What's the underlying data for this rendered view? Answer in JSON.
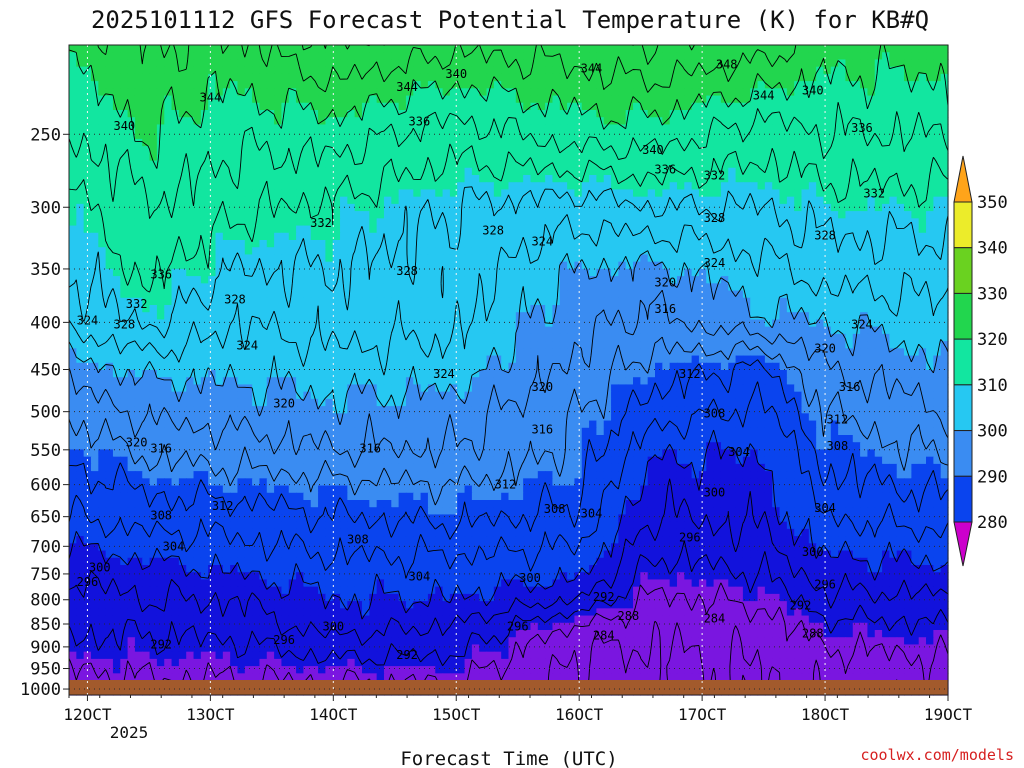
{
  "chart_data": {
    "type": "heatmap",
    "title": "2025101112 GFS Forecast Potential Temperature (K) for KB#Q",
    "xlabel": "Forecast Time (UTC)",
    "ylabel": "",
    "credit": "coolwx.com/models",
    "x_ticks": [
      "12OCT",
      "13OCT",
      "14OCT",
      "15OCT",
      "16OCT",
      "17OCT",
      "18OCT",
      "19OCT"
    ],
    "x_tick_values": [
      12,
      13,
      14,
      15,
      16,
      17,
      18,
      19
    ],
    "x_subtick": "2025",
    "xlim": [
      11.85,
      19.0
    ],
    "y_ticks": [
      "250",
      "300",
      "350",
      "400",
      "450",
      "500",
      "550",
      "600",
      "650",
      "700",
      "750",
      "800",
      "850",
      "900",
      "950",
      "1000"
    ],
    "y_tick_values": [
      250,
      300,
      350,
      400,
      450,
      500,
      550,
      600,
      650,
      700,
      750,
      800,
      850,
      900,
      950,
      1000
    ],
    "ylim": [
      200,
      1015
    ],
    "yscale": "log",
    "color_levels": [
      280,
      290,
      300,
      310,
      320,
      330,
      340,
      350
    ],
    "legend_labels": [
      "350",
      "340",
      "330",
      "320",
      "310",
      "300",
      "290",
      "280"
    ],
    "colors": [
      "#cc00cc",
      "#7a16e0",
      "#1212dc",
      "#0a44ee",
      "#3a8cf2",
      "#26c8f2",
      "#12e6a0",
      "#22d64e",
      "#6ad220",
      "#ecec2a",
      "#ffa41a"
    ],
    "ground_color": "#a25a2c",
    "contour_interval": 4,
    "profiles": [
      {
        "t": 11.85,
        "levels": [
          [
            200,
            342
          ],
          [
            250,
            336
          ],
          [
            300,
            330
          ],
          [
            350,
            328
          ],
          [
            400,
            325
          ],
          [
            450,
            318
          ],
          [
            500,
            313
          ],
          [
            550,
            309
          ],
          [
            600,
            306
          ],
          [
            650,
            304
          ],
          [
            700,
            300
          ],
          [
            750,
            297
          ],
          [
            800,
            294
          ],
          [
            850,
            293
          ],
          [
            900,
            291
          ],
          [
            950,
            288
          ],
          [
            1000,
            286
          ]
        ]
      },
      {
        "t": 12.5,
        "levels": [
          [
            200,
            344
          ],
          [
            250,
            340
          ],
          [
            300,
            336
          ],
          [
            350,
            333
          ],
          [
            400,
            329
          ],
          [
            450,
            321
          ],
          [
            500,
            317
          ],
          [
            550,
            313
          ],
          [
            600,
            309
          ],
          [
            650,
            306
          ],
          [
            700,
            302
          ],
          [
            750,
            298
          ],
          [
            800,
            296
          ],
          [
            850,
            293
          ],
          [
            900,
            291
          ],
          [
            950,
            289
          ],
          [
            1000,
            287
          ]
        ]
      },
      {
        "t": 13.2,
        "levels": [
          [
            200,
            343
          ],
          [
            250,
            337
          ],
          [
            300,
            333
          ],
          [
            350,
            328
          ],
          [
            400,
            324
          ],
          [
            450,
            321
          ],
          [
            500,
            318
          ],
          [
            550,
            314
          ],
          [
            600,
            310
          ],
          [
            650,
            306
          ],
          [
            700,
            303
          ],
          [
            750,
            300
          ],
          [
            800,
            296
          ],
          [
            850,
            294
          ],
          [
            900,
            291
          ],
          [
            950,
            289
          ],
          [
            1000,
            287
          ]
        ]
      },
      {
        "t": 14.0,
        "levels": [
          [
            200,
            348
          ],
          [
            250,
            338
          ],
          [
            300,
            331
          ],
          [
            350,
            328
          ],
          [
            400,
            326
          ],
          [
            450,
            322
          ],
          [
            500,
            319
          ],
          [
            550,
            316
          ],
          [
            600,
            311
          ],
          [
            650,
            308
          ],
          [
            700,
            305
          ],
          [
            750,
            302
          ],
          [
            800,
            300
          ],
          [
            850,
            298
          ],
          [
            900,
            294
          ],
          [
            950,
            290
          ],
          [
            1000,
            287
          ]
        ]
      },
      {
        "t": 15.0,
        "levels": [
          [
            200,
            345
          ],
          [
            250,
            334
          ],
          [
            300,
            328
          ],
          [
            350,
            326
          ],
          [
            400,
            325
          ],
          [
            450,
            322
          ],
          [
            500,
            318
          ],
          [
            550,
            316
          ],
          [
            600,
            312
          ],
          [
            650,
            309
          ],
          [
            700,
            305
          ],
          [
            750,
            302
          ],
          [
            800,
            300
          ],
          [
            850,
            296
          ],
          [
            900,
            293
          ],
          [
            950,
            290
          ],
          [
            1000,
            287
          ]
        ]
      },
      {
        "t": 16.0,
        "levels": [
          [
            200,
            346
          ],
          [
            250,
            338
          ],
          [
            300,
            326
          ],
          [
            350,
            320
          ],
          [
            400,
            317
          ],
          [
            450,
            315
          ],
          [
            500,
            312
          ],
          [
            550,
            311
          ],
          [
            600,
            309
          ],
          [
            650,
            307
          ],
          [
            700,
            304
          ],
          [
            750,
            301
          ],
          [
            800,
            296
          ],
          [
            850,
            288
          ],
          [
            900,
            284
          ],
          [
            950,
            283
          ],
          [
            1000,
            283
          ]
        ]
      },
      {
        "t": 16.6,
        "levels": [
          [
            200,
            348
          ],
          [
            250,
            338
          ],
          [
            300,
            328
          ],
          [
            350,
            319
          ],
          [
            400,
            315
          ],
          [
            450,
            310
          ],
          [
            500,
            306
          ],
          [
            550,
            301
          ],
          [
            600,
            298
          ],
          [
            650,
            296
          ],
          [
            700,
            293
          ],
          [
            750,
            290
          ],
          [
            800,
            287
          ],
          [
            850,
            285
          ],
          [
            900,
            284
          ],
          [
            950,
            283
          ],
          [
            1000,
            283
          ]
        ]
      },
      {
        "t": 17.5,
        "levels": [
          [
            200,
            346
          ],
          [
            250,
            334
          ],
          [
            300,
            328
          ],
          [
            350,
            323
          ],
          [
            400,
            319
          ],
          [
            450,
            307
          ],
          [
            500,
            303
          ],
          [
            550,
            300
          ],
          [
            600,
            298
          ],
          [
            650,
            297
          ],
          [
            700,
            295
          ],
          [
            750,
            292
          ],
          [
            800,
            289
          ],
          [
            850,
            286
          ],
          [
            900,
            285
          ],
          [
            950,
            284
          ],
          [
            1000,
            284
          ]
        ]
      },
      {
        "t": 18.0,
        "levels": [
          [
            200,
            342
          ],
          [
            250,
            336
          ],
          [
            300,
            330
          ],
          [
            350,
            326
          ],
          [
            400,
            320
          ],
          [
            450,
            316
          ],
          [
            500,
            312
          ],
          [
            550,
            309
          ],
          [
            600,
            307
          ],
          [
            650,
            304
          ],
          [
            700,
            301
          ],
          [
            750,
            298
          ],
          [
            800,
            295
          ],
          [
            850,
            291
          ],
          [
            900,
            288
          ],
          [
            950,
            286
          ],
          [
            1000,
            285
          ]
        ]
      },
      {
        "t": 19.0,
        "levels": [
          [
            200,
            342
          ],
          [
            250,
            336
          ],
          [
            300,
            330
          ],
          [
            350,
            326
          ],
          [
            400,
            323
          ],
          [
            450,
            319
          ],
          [
            500,
            316
          ],
          [
            550,
            313
          ],
          [
            600,
            309
          ],
          [
            650,
            306
          ],
          [
            700,
            302
          ],
          [
            750,
            299
          ],
          [
            800,
            295
          ],
          [
            850,
            292
          ],
          [
            900,
            289
          ],
          [
            950,
            287
          ],
          [
            1000,
            286
          ]
        ]
      }
    ],
    "contour_labels": [
      {
        "text": "348",
        "t": 17.2,
        "p": 210
      },
      {
        "text": "344",
        "t": 13.0,
        "p": 228
      },
      {
        "text": "344",
        "t": 14.6,
        "p": 222
      },
      {
        "text": "344",
        "t": 16.1,
        "p": 212
      },
      {
        "text": "344",
        "t": 17.5,
        "p": 227
      },
      {
        "text": "340",
        "t": 12.3,
        "p": 245
      },
      {
        "text": "340",
        "t": 15.0,
        "p": 215
      },
      {
        "text": "340",
        "t": 16.6,
        "p": 260
      },
      {
        "text": "340",
        "t": 17.9,
        "p": 224
      },
      {
        "text": "336",
        "t": 14.7,
        "p": 242
      },
      {
        "text": "336",
        "t": 12.6,
        "p": 355
      },
      {
        "text": "336",
        "t": 16.7,
        "p": 273
      },
      {
        "text": "336",
        "t": 18.3,
        "p": 246
      },
      {
        "text": "332",
        "t": 13.9,
        "p": 312
      },
      {
        "text": "332",
        "t": 12.4,
        "p": 382
      },
      {
        "text": "332",
        "t": 17.1,
        "p": 277
      },
      {
        "text": "332",
        "t": 18.4,
        "p": 290
      },
      {
        "text": "328",
        "t": 15.3,
        "p": 318
      },
      {
        "text": "328",
        "t": 14.6,
        "p": 352
      },
      {
        "text": "328",
        "t": 13.2,
        "p": 378
      },
      {
        "text": "328",
        "t": 12.3,
        "p": 402
      },
      {
        "text": "328",
        "t": 17.1,
        "p": 308
      },
      {
        "text": "328",
        "t": 18.0,
        "p": 322
      },
      {
        "text": "324",
        "t": 15.7,
        "p": 327
      },
      {
        "text": "324",
        "t": 12.0,
        "p": 398
      },
      {
        "text": "324",
        "t": 13.3,
        "p": 424
      },
      {
        "text": "324",
        "t": 14.9,
        "p": 455
      },
      {
        "text": "324",
        "t": 17.1,
        "p": 345
      },
      {
        "text": "324",
        "t": 18.3,
        "p": 402
      },
      {
        "text": "320",
        "t": 16.7,
        "p": 362
      },
      {
        "text": "320",
        "t": 18.0,
        "p": 427
      },
      {
        "text": "320",
        "t": 13.6,
        "p": 490
      },
      {
        "text": "320",
        "t": 15.7,
        "p": 470
      },
      {
        "text": "320",
        "t": 12.4,
        "p": 540
      },
      {
        "text": "316",
        "t": 16.7,
        "p": 387
      },
      {
        "text": "316",
        "t": 18.2,
        "p": 470
      },
      {
        "text": "316",
        "t": 12.6,
        "p": 548
      },
      {
        "text": "316",
        "t": 14.3,
        "p": 548
      },
      {
        "text": "316",
        "t": 15.7,
        "p": 523
      },
      {
        "text": "312",
        "t": 16.9,
        "p": 455
      },
      {
        "text": "312",
        "t": 18.1,
        "p": 510
      },
      {
        "text": "312",
        "t": 13.1,
        "p": 633
      },
      {
        "text": "312",
        "t": 15.4,
        "p": 600
      },
      {
        "text": "308",
        "t": 17.1,
        "p": 502
      },
      {
        "text": "308",
        "t": 18.1,
        "p": 545
      },
      {
        "text": "308",
        "t": 12.6,
        "p": 648
      },
      {
        "text": "308",
        "t": 14.2,
        "p": 688
      },
      {
        "text": "308",
        "t": 15.8,
        "p": 638
      },
      {
        "text": "304",
        "t": 17.3,
        "p": 553
      },
      {
        "text": "304",
        "t": 18.0,
        "p": 636
      },
      {
        "text": "304",
        "t": 12.7,
        "p": 700
      },
      {
        "text": "304",
        "t": 14.7,
        "p": 755
      },
      {
        "text": "304",
        "t": 16.1,
        "p": 645
      },
      {
        "text": "300",
        "t": 17.1,
        "p": 612
      },
      {
        "text": "300",
        "t": 17.9,
        "p": 710
      },
      {
        "text": "300",
        "t": 12.1,
        "p": 738
      },
      {
        "text": "300",
        "t": 14.0,
        "p": 855
      },
      {
        "text": "300",
        "t": 15.6,
        "p": 758
      },
      {
        "text": "296",
        "t": 16.9,
        "p": 685
      },
      {
        "text": "296",
        "t": 18.0,
        "p": 770
      },
      {
        "text": "296",
        "t": 12.0,
        "p": 765
      },
      {
        "text": "296",
        "t": 13.6,
        "p": 885
      },
      {
        "text": "296",
        "t": 15.5,
        "p": 855
      },
      {
        "text": "292",
        "t": 16.2,
        "p": 795
      },
      {
        "text": "292",
        "t": 17.8,
        "p": 812
      },
      {
        "text": "292",
        "t": 12.6,
        "p": 895
      },
      {
        "text": "292",
        "t": 14.6,
        "p": 918
      },
      {
        "text": "288",
        "t": 16.4,
        "p": 833
      },
      {
        "text": "288",
        "t": 17.9,
        "p": 870
      },
      {
        "text": "284",
        "t": 16.2,
        "p": 875
      },
      {
        "text": "284",
        "t": 17.1,
        "p": 838
      }
    ]
  }
}
